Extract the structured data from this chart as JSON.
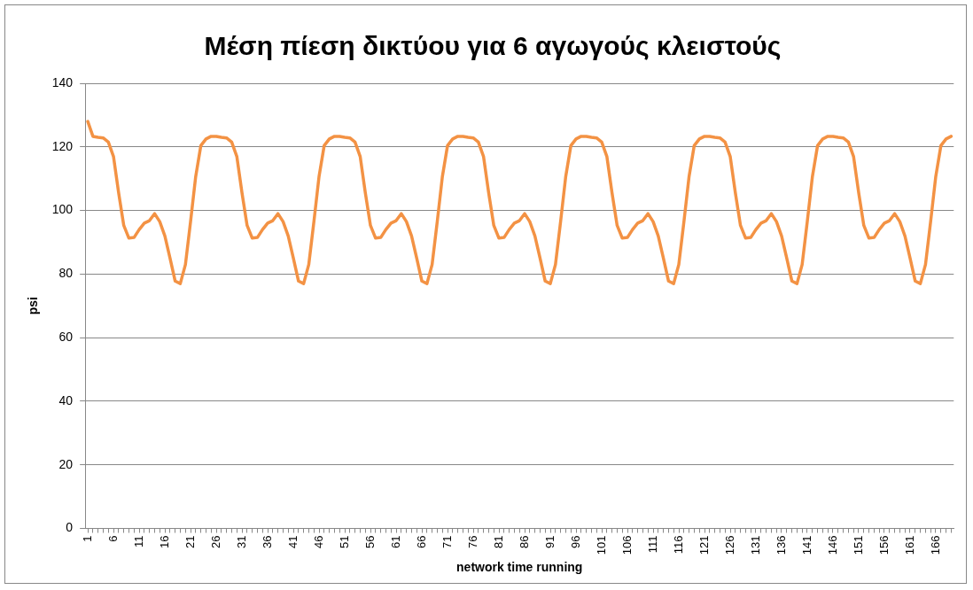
{
  "chart_data": {
    "type": "line",
    "title": "Μέση πίεση δικτύου για 6 αγωγούς κλειστούς",
    "xlabel": "network time running",
    "ylabel": "psi",
    "categories": [
      "1",
      null,
      null,
      null,
      null,
      "6",
      null,
      null,
      null,
      null,
      "11",
      null,
      null,
      null,
      null,
      "16",
      null,
      null,
      null,
      null,
      "21",
      null,
      null,
      null,
      null,
      "26",
      null,
      null,
      null,
      null,
      "31",
      null,
      null,
      null,
      null,
      "36",
      null,
      null,
      null,
      null,
      "41",
      null,
      null,
      null,
      null,
      "46",
      null,
      null,
      null,
      null,
      "51",
      null,
      null,
      null,
      null,
      "56",
      null,
      null,
      null,
      null,
      "61",
      null,
      null,
      null,
      null,
      "66",
      null,
      null,
      null,
      null,
      "71",
      null,
      null,
      null,
      null,
      "76",
      null,
      null,
      null,
      null,
      "81",
      null,
      null,
      null,
      null,
      "86",
      null,
      null,
      null,
      null,
      "91",
      null,
      null,
      null,
      null,
      "96",
      null,
      null,
      null,
      null,
      "101",
      null,
      null,
      null,
      null,
      "106",
      null,
      null,
      null,
      null,
      "111",
      null,
      null,
      null,
      null,
      "116",
      null,
      null,
      null,
      null,
      "121",
      null,
      null,
      null,
      null,
      "126",
      null,
      null,
      null,
      null,
      "131",
      null,
      null,
      null,
      null,
      "136",
      null,
      null,
      null,
      null,
      "141",
      null,
      null,
      null,
      null,
      "146",
      null,
      null,
      null,
      null,
      "151",
      null,
      null,
      null,
      null,
      "156",
      null,
      null,
      null,
      null,
      "161",
      null,
      null,
      null,
      null,
      "166",
      null,
      null,
      null
    ],
    "series": [
      {
        "color": "#f39244",
        "values": [
          128,
          123.3,
          123,
          122.8,
          121.5,
          117,
          105.6,
          95.3,
          91.3,
          91.5,
          94,
          96,
          96.8,
          99,
          96.5,
          92,
          85,
          77.8,
          77,
          83,
          96.5,
          110.7,
          120.4,
          122.5,
          123.3,
          123.3,
          123,
          122.8,
          121.5,
          117,
          105.6,
          95.3,
          91.3,
          91.5,
          94,
          96,
          96.8,
          99,
          96.5,
          92,
          85,
          77.8,
          77,
          83,
          96.5,
          110.7,
          120.4,
          122.5,
          123.3,
          123.3,
          123,
          122.8,
          121.5,
          117,
          105.6,
          95.3,
          91.3,
          91.5,
          94,
          96,
          96.8,
          99,
          96.5,
          92,
          85,
          77.8,
          77,
          83,
          96.5,
          110.7,
          120.4,
          122.5,
          123.3,
          123.3,
          123,
          122.8,
          121.5,
          117,
          105.6,
          95.3,
          91.3,
          91.5,
          94,
          96,
          96.8,
          99,
          96.5,
          92,
          85,
          77.8,
          77,
          83,
          96.5,
          110.7,
          120.4,
          122.5,
          123.3,
          123.3,
          123,
          122.8,
          121.5,
          117,
          105.6,
          95.3,
          91.3,
          91.5,
          94,
          96,
          96.8,
          99,
          96.5,
          92,
          85,
          77.8,
          77,
          83,
          96.5,
          110.7,
          120.4,
          122.5,
          123.3,
          123.3,
          123,
          122.8,
          121.5,
          117,
          105.6,
          95.3,
          91.3,
          91.5,
          94,
          96,
          96.8,
          99,
          96.5,
          92,
          85,
          77.8,
          77,
          83,
          96.5,
          110.7,
          120.4,
          122.5,
          123.3,
          123.3,
          123,
          122.8,
          121.5,
          117,
          105.6,
          95.3,
          91.3,
          91.5,
          94,
          96,
          96.8,
          99,
          96.5,
          92,
          85,
          77.8,
          77,
          83,
          96.5,
          110.7,
          120.4,
          122.5,
          123.3
        ]
      }
    ],
    "ylim": [
      0,
      140
    ],
    "yticks": [
      0,
      20,
      40,
      60,
      80,
      100,
      120,
      140
    ],
    "grid": "y",
    "legend": false,
    "marker": "none",
    "line_style": "solid"
  }
}
